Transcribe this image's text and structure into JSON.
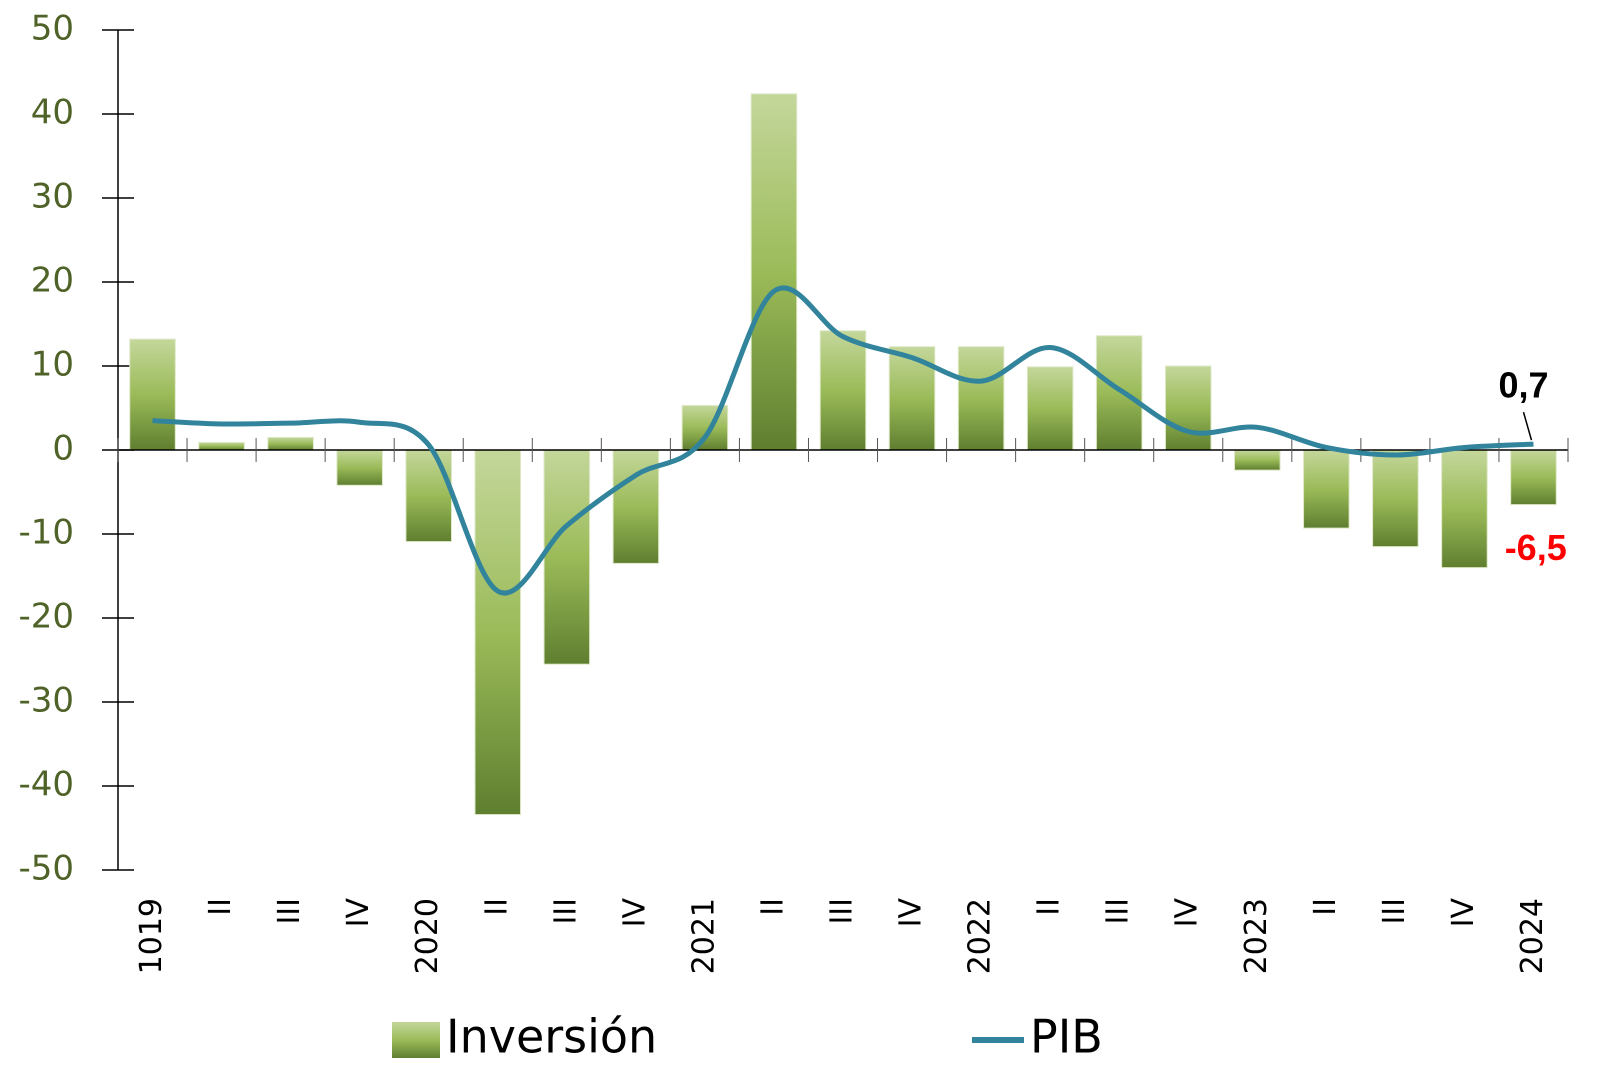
{
  "chart_data": {
    "type": "bar_line",
    "categories": [
      "1019",
      "II",
      "III",
      "IV",
      "2020",
      "II",
      "III",
      "IV",
      "2021",
      "II",
      "III",
      "IV",
      "2022",
      "II",
      "III",
      "IV",
      "2023",
      "II",
      "III",
      "IV",
      "2024"
    ],
    "series": [
      {
        "name": "Inversión",
        "type": "bar",
        "color": "#8db35a",
        "values": [
          13.2,
          0.9,
          1.5,
          -4.2,
          -10.9,
          -43.4,
          -25.5,
          -13.5,
          5.3,
          42.4,
          14.2,
          12.3,
          12.3,
          9.9,
          13.6,
          10.0,
          -2.4,
          -9.3,
          -11.5,
          -14.0,
          -6.5
        ],
        "value_labels": [
          null,
          null,
          null,
          null,
          null,
          null,
          null,
          null,
          null,
          null,
          null,
          null,
          null,
          null,
          null,
          null,
          null,
          null,
          null,
          null,
          "-6,5"
        ]
      },
      {
        "name": "PIB",
        "type": "line",
        "color": "#31849b",
        "values": [
          3.5,
          3.1,
          3.2,
          3.3,
          0.6,
          -16.8,
          -9.0,
          -3.0,
          1.5,
          18.9,
          13.5,
          11.0,
          8.2,
          12.2,
          7.2,
          2.2,
          2.7,
          0.3,
          -0.6,
          0.3,
          0.7
        ],
        "value_labels": [
          null,
          null,
          null,
          null,
          null,
          null,
          null,
          null,
          null,
          null,
          null,
          null,
          null,
          null,
          null,
          null,
          null,
          null,
          null,
          null,
          "0,7"
        ]
      }
    ],
    "ylim": [
      -50,
      50
    ],
    "yticks": [
      -50,
      -40,
      -30,
      -20,
      -10,
      0,
      10,
      20,
      30,
      40,
      50
    ]
  }
}
